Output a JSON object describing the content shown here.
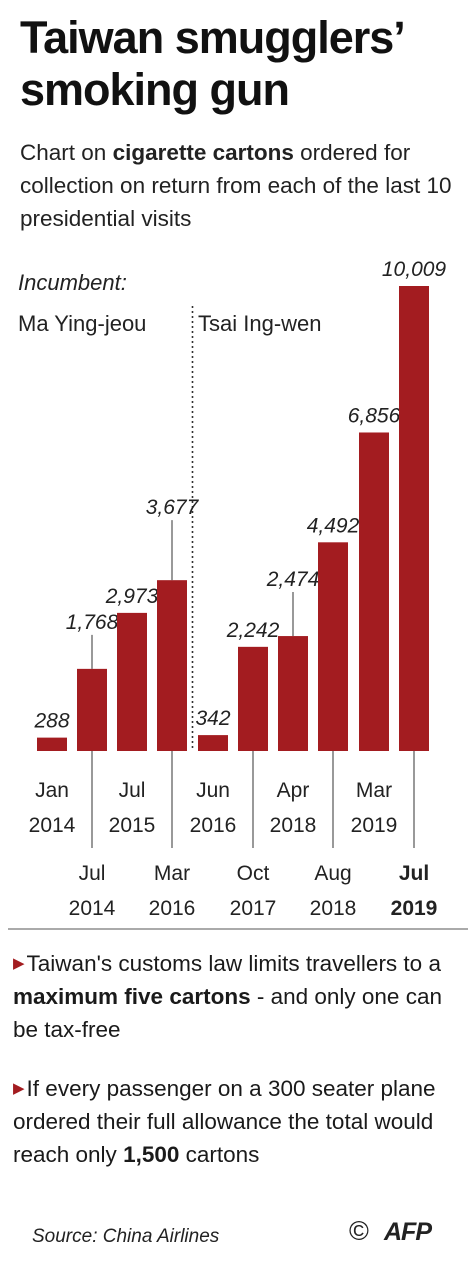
{
  "header": {
    "title": "Taiwan smugglers’ smoking gun",
    "subtitle_pre": "Chart on ",
    "subtitle_bold": "cigarette cartons",
    "subtitle_post": " ordered for collection on return from each of the last 10 presidential visits"
  },
  "chart_data": {
    "type": "bar",
    "title": "",
    "xlabel": "",
    "ylabel": "",
    "ylim": [
      0,
      10009
    ],
    "bar_color": "#a31c20",
    "incumbent_label": "Incumbent:",
    "incumbents": [
      "Ma Ying-jeou",
      "Tsai Ing-wen"
    ],
    "categories": [
      {
        "month": "Jan",
        "year": "2014",
        "value": 288,
        "value_label": "288"
      },
      {
        "month": "Jul",
        "year": "2014",
        "value": 1768,
        "value_label": "1,768"
      },
      {
        "month": "Jul",
        "year": "2015",
        "value": 2973,
        "value_label": "2,973"
      },
      {
        "month": "Mar",
        "year": "2016",
        "value": 3677,
        "value_label": "3,677"
      },
      {
        "month": "Jun",
        "year": "2016",
        "value": 342,
        "value_label": "342"
      },
      {
        "month": "Oct",
        "year": "2017",
        "value": 2242,
        "value_label": "2,242"
      },
      {
        "month": "Apr",
        "year": "2018",
        "value": 2474,
        "value_label": "2,474"
      },
      {
        "month": "Aug",
        "year": "2018",
        "value": 4492,
        "value_label": "4,492"
      },
      {
        "month": "Mar",
        "year": "2019",
        "value": 6856,
        "value_label": "6,856"
      },
      {
        "month": "Jul",
        "year": "2019",
        "value": 10009,
        "value_label": "10,009"
      }
    ]
  },
  "notes": {
    "bullet1_pre": "Taiwan's customs law limits travellers to a ",
    "bullet1_bold": "maximum five cartons",
    "bullet1_post": " - and only one can be tax-free",
    "bullet2_pre": "If every passenger on a 300 seater plane ordered their full allowance the total would reach only ",
    "bullet2_bold": "1,500",
    "bullet2_post": " cartons"
  },
  "footer": {
    "source": "Source: China Airlines",
    "copyright": "©",
    "logo": "AFP"
  }
}
